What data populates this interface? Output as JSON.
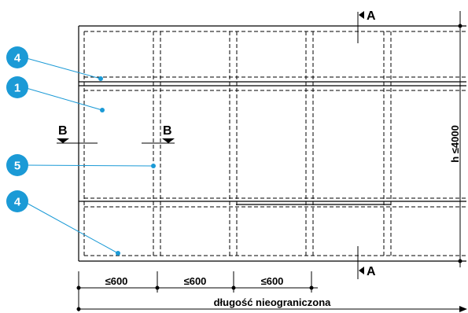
{
  "section_marks": {
    "a_top": "A",
    "a_bottom": "A",
    "b_left": "B",
    "b_right": "B"
  },
  "callouts": [
    {
      "id": "4"
    },
    {
      "id": "1"
    },
    {
      "id": "5"
    },
    {
      "id": "4"
    }
  ],
  "dimensions": {
    "height": "h ≤4000",
    "bay_1": "≤600",
    "bay_2": "≤600",
    "bay_3": "≤600",
    "length": "długość nieograniczona"
  },
  "colors": {
    "callout": "#1b9ad6",
    "line": "#000000"
  }
}
